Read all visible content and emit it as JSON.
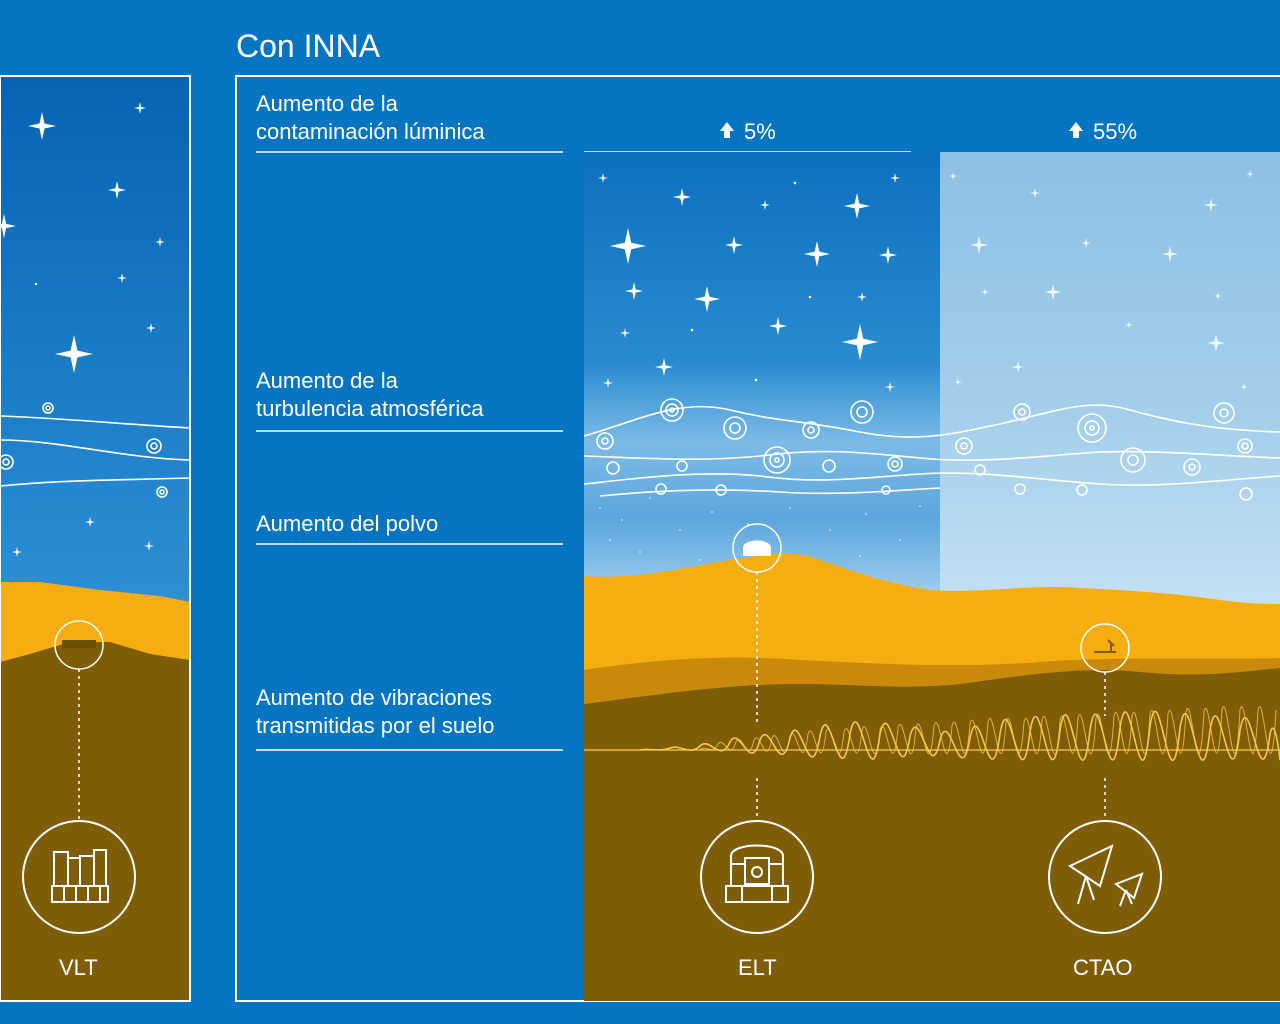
{
  "panel_title": "Con INNA",
  "rows": [
    {
      "line1": "Aumento de la",
      "line2": "contaminación lúminica"
    },
    {
      "line1": "Aumento de la",
      "line2": "turbulencia atmosférica"
    },
    {
      "line1": "Aumento del polvo",
      "line2": ""
    },
    {
      "line1": "Aumento de vibraciones",
      "line2": "transmitidas por el suelo"
    }
  ],
  "increases": {
    "elt": "5%",
    "ctao": "55%"
  },
  "telescopes": {
    "vlt": "VLT",
    "elt": "ELT",
    "ctao": "CTAO"
  },
  "colors": {
    "background": "#0575c2",
    "sky_top": "#0a66b8",
    "sky_bright": "#8fc4e6",
    "mountain_yellow": "#f6ad10",
    "mountain_mid": "#c98a0c",
    "ground_brown": "#7e5d06",
    "wave": "#f8c64a"
  },
  "icons": [
    "arrow-up-icon",
    "star-icon",
    "wind-swirl-icon",
    "vlt-telescope-icon",
    "elt-telescope-icon",
    "ctao-antenna-icon"
  ]
}
